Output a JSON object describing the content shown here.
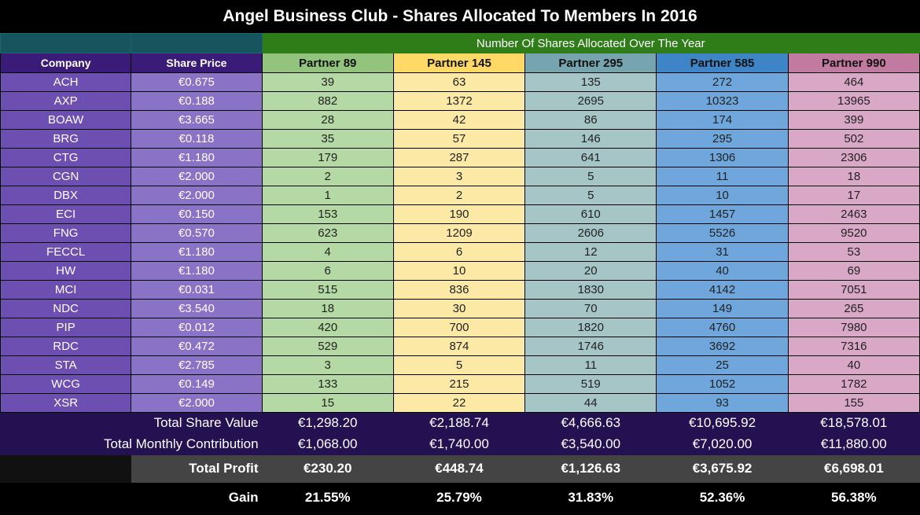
{
  "title": "Angel Business Club - Shares Allocated To Members In 2016",
  "group_header": "Number Of Shares Allocated Over The Year",
  "columns": {
    "company": "Company",
    "share_price": "Share Price",
    "partners": [
      "Partner 89",
      "Partner 145",
      "Partner 295",
      "Partner 585",
      "Partner 990"
    ]
  },
  "colors": {
    "partner_headers": [
      "#93c47d",
      "#ffd966",
      "#76a5af",
      "#3d85c6",
      "#c27ba0"
    ],
    "company_bg": "#6d4fb2",
    "group_header_bg": "#2f7d19"
  },
  "rows": [
    {
      "company": "ACH",
      "price": "€0.675",
      "shares": [
        "39",
        "63",
        "135",
        "272",
        "464"
      ]
    },
    {
      "company": "AXP",
      "price": "€0.188",
      "shares": [
        "882",
        "1372",
        "2695",
        "10323",
        "13965"
      ]
    },
    {
      "company": "BOAW",
      "price": "€3.665",
      "shares": [
        "28",
        "42",
        "86",
        "174",
        "399"
      ]
    },
    {
      "company": "BRG",
      "price": "€0.118",
      "shares": [
        "35",
        "57",
        "146",
        "295",
        "502"
      ]
    },
    {
      "company": "CTG",
      "price": "€1.180",
      "shares": [
        "179",
        "287",
        "641",
        "1306",
        "2306"
      ]
    },
    {
      "company": "CGN",
      "price": "€2.000",
      "shares": [
        "2",
        "3",
        "5",
        "11",
        "18"
      ]
    },
    {
      "company": "DBX",
      "price": "€2.000",
      "shares": [
        "1",
        "2",
        "5",
        "10",
        "17"
      ]
    },
    {
      "company": "ECI",
      "price": "€0.150",
      "shares": [
        "153",
        "190",
        "610",
        "1457",
        "2463"
      ]
    },
    {
      "company": "FNG",
      "price": "€0.570",
      "shares": [
        "623",
        "1209",
        "2606",
        "5526",
        "9520"
      ]
    },
    {
      "company": "FECCL",
      "price": "€1.180",
      "shares": [
        "4",
        "6",
        "12",
        "31",
        "53"
      ]
    },
    {
      "company": "HW",
      "price": "€1.180",
      "shares": [
        "6",
        "10",
        "20",
        "40",
        "69"
      ]
    },
    {
      "company": "MCI",
      "price": "€0.031",
      "shares": [
        "515",
        "836",
        "1830",
        "4142",
        "7051"
      ]
    },
    {
      "company": "NDC",
      "price": "€3.540",
      "shares": [
        "18",
        "30",
        "70",
        "149",
        "265"
      ]
    },
    {
      "company": "PIP",
      "price": "€0.012",
      "shares": [
        "420",
        "700",
        "1820",
        "4760",
        "7980"
      ]
    },
    {
      "company": "RDC",
      "price": "€0.472",
      "shares": [
        "529",
        "874",
        "1746",
        "3692",
        "7316"
      ]
    },
    {
      "company": "STA",
      "price": "€2.785",
      "shares": [
        "3",
        "5",
        "11",
        "25",
        "40"
      ]
    },
    {
      "company": "WCG",
      "price": "€0.149",
      "shares": [
        "133",
        "215",
        "519",
        "1052",
        "1782"
      ]
    },
    {
      "company": "XSR",
      "price": "€2.000",
      "shares": [
        "15",
        "22",
        "44",
        "93",
        "155"
      ]
    }
  ],
  "totals": {
    "share_value": {
      "label": "Total Share Value",
      "values": [
        "€1,298.20",
        "€2,188.74",
        "€4,666.63",
        "€10,695.92",
        "€18,578.01"
      ]
    },
    "monthly_contribution": {
      "label": "Total Monthly Contribution",
      "values": [
        "€1,068.00",
        "€1,740.00",
        "€3,540.00",
        "€7,020.00",
        "€11,880.00"
      ]
    },
    "profit": {
      "label": "Total Profit",
      "values": [
        "€230.20",
        "€448.74",
        "€1,126.63",
        "€3,675.92",
        "€6,698.01"
      ]
    },
    "gain": {
      "label": "Gain",
      "values": [
        "21.55%",
        "25.79%",
        "31.83%",
        "52.36%",
        "56.38%"
      ]
    }
  }
}
